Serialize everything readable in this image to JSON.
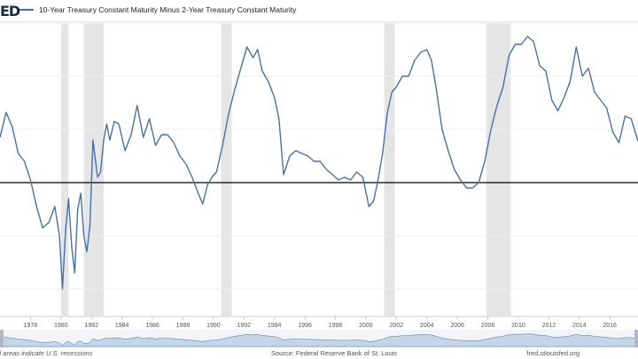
{
  "header": {
    "logo_text": "ED",
    "series_title": "10-Year Treasury Constant Maturity Minus 2-Year Treasury Constant Maturity"
  },
  "footer": {
    "recession_note": "d areas indicate U.S. recessions",
    "source": "Source: Federal Reserve Bank of St. Louis",
    "site": "fred.stlouisfed.org"
  },
  "colors": {
    "line": "#4572a7",
    "recession": "#e5e5e5",
    "zero_line": "#000000",
    "navigator": "#c6d4e8"
  },
  "chart_data": {
    "type": "line",
    "title": "",
    "xlabel": "",
    "ylabel": "",
    "x_ticks": [
      "1978",
      "1980",
      "1982",
      "1984",
      "1986",
      "1988",
      "1990",
      "1992",
      "1994",
      "1996",
      "1998",
      "2000",
      "2002",
      "2004",
      "2006",
      "2008",
      "2010",
      "2012",
      "2014",
      "2016"
    ],
    "xlim": [
      1976.0,
      2017.85
    ],
    "ylim": [
      -2.5,
      3.0
    ],
    "zero_line": 0,
    "recessions": [
      [
        1980.0,
        1980.5
      ],
      [
        1981.5,
        1982.8
      ],
      [
        1990.5,
        1991.2
      ],
      [
        2001.2,
        2001.9
      ],
      [
        2007.9,
        2009.5
      ]
    ],
    "series": [
      {
        "x": [
          1976.0,
          1976.4,
          1976.8,
          1977.2,
          1977.6,
          1978.0,
          1978.4,
          1978.8,
          1979.2,
          1979.6,
          1979.9,
          1980.1,
          1980.3,
          1980.5,
          1980.7,
          1980.9,
          1981.1,
          1981.3,
          1981.5,
          1981.7,
          1981.9,
          1982.1,
          1982.4,
          1982.6,
          1982.8,
          1983.0,
          1983.2,
          1983.5,
          1983.8,
          1984.2,
          1984.6,
          1985.0,
          1985.4,
          1985.8,
          1986.2,
          1986.6,
          1987.0,
          1987.4,
          1987.8,
          1988.2,
          1988.6,
          1989.0,
          1989.3,
          1989.6,
          1989.9,
          1990.2,
          1990.6,
          1991.0,
          1991.4,
          1991.8,
          1992.2,
          1992.6,
          1992.9,
          1993.2,
          1993.6,
          1994.0,
          1994.3,
          1994.6,
          1995.0,
          1995.4,
          1995.8,
          1996.2,
          1996.6,
          1997.0,
          1997.4,
          1997.8,
          1998.2,
          1998.6,
          1999.0,
          1999.4,
          1999.8,
          2000.2,
          2000.5,
          2000.8,
          2001.1,
          2001.4,
          2001.7,
          2002.0,
          2002.4,
          2002.8,
          2003.2,
          2003.6,
          2004.0,
          2004.3,
          2004.6,
          2005.0,
          2005.4,
          2005.8,
          2006.2,
          2006.6,
          2007.0,
          2007.4,
          2007.8,
          2008.2,
          2008.6,
          2009.0,
          2009.4,
          2009.8,
          2010.2,
          2010.6,
          2011.0,
          2011.4,
          2011.8,
          2012.2,
          2012.6,
          2013.0,
          2013.4,
          2013.8,
          2014.2,
          2014.6,
          2015.0,
          2015.4,
          2015.8,
          2016.2,
          2016.6,
          2017.0,
          2017.4,
          2017.85
        ],
        "y": [
          0.85,
          1.32,
          1.05,
          0.55,
          0.4,
          0.05,
          -0.45,
          -0.85,
          -0.75,
          -0.45,
          -1.0,
          -2.0,
          -0.9,
          -0.3,
          -1.2,
          -1.7,
          -0.5,
          -0.2,
          -1.0,
          -1.3,
          -0.8,
          0.8,
          0.1,
          0.2,
          0.8,
          1.1,
          0.8,
          1.15,
          1.1,
          0.6,
          0.9,
          1.45,
          0.85,
          1.2,
          0.7,
          0.9,
          0.9,
          0.75,
          0.5,
          0.35,
          0.1,
          -0.2,
          -0.4,
          -0.05,
          0.1,
          0.2,
          0.7,
          1.3,
          1.75,
          2.15,
          2.55,
          2.35,
          2.5,
          2.1,
          1.9,
          1.6,
          1.2,
          0.15,
          0.5,
          0.6,
          0.55,
          0.5,
          0.4,
          0.4,
          0.25,
          0.15,
          0.05,
          0.1,
          0.05,
          0.2,
          0.1,
          -0.45,
          -0.35,
          0.05,
          0.55,
          1.3,
          1.7,
          1.8,
          2.0,
          2.0,
          2.3,
          2.45,
          2.5,
          2.3,
          1.8,
          1.0,
          0.6,
          0.25,
          0.05,
          -0.1,
          -0.1,
          0.0,
          0.4,
          1.0,
          1.45,
          1.8,
          2.4,
          2.6,
          2.6,
          2.75,
          2.65,
          2.2,
          2.1,
          1.55,
          1.35,
          1.6,
          1.9,
          2.55,
          2.0,
          2.15,
          1.7,
          1.55,
          1.4,
          0.95,
          0.75,
          1.25,
          1.2,
          0.78
        ]
      }
    ]
  }
}
